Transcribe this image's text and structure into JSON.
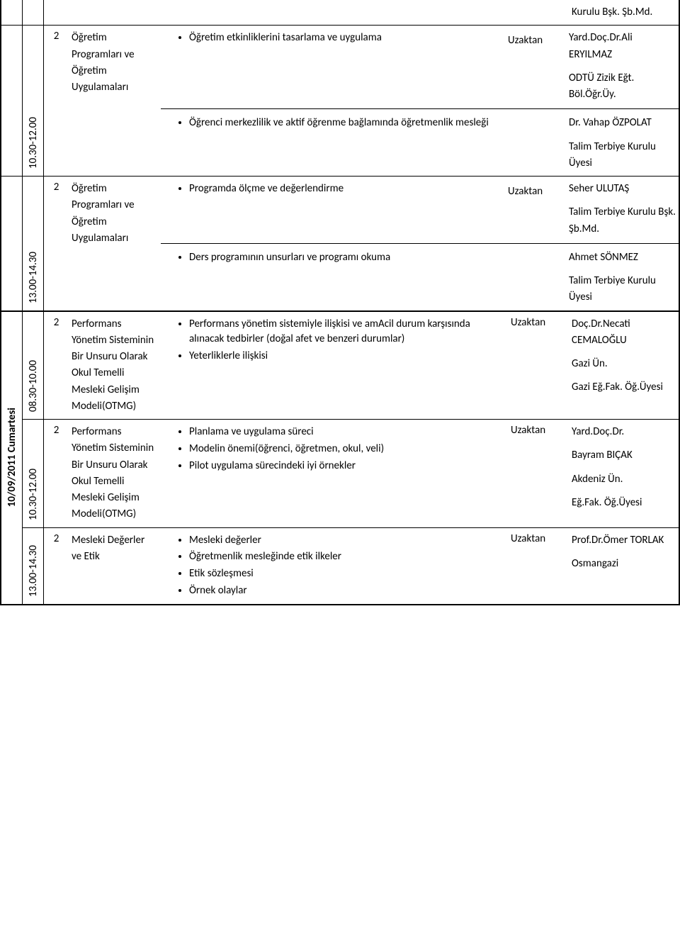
{
  "rows": [
    {
      "date": "",
      "time": "",
      "num": "",
      "topic": "",
      "mode": "",
      "contents": [
        [
          ""
        ]
      ],
      "persons": [
        "Kurulu Bşk. Şb.Md."
      ],
      "noTopBorder": true,
      "personOnlyFirst": true
    },
    {
      "date": "",
      "time": "10.30-12.00",
      "num": "2",
      "topic": "Öğretim Programları ve Öğretim Uygulamaları",
      "mode": "Uzaktan",
      "contents": [
        [
          "Öğretim etkinliklerini tasarlama ve uygulama"
        ],
        [
          "Öğrenci merkezlilik ve aktif öğrenme bağlamında öğretmenlik mesleği"
        ]
      ],
      "persons": [
        "Yard.Doç.Dr.Ali ERYILMAZ||ODTÜ Zizik Eğt. Böl.Öğr.Üy.",
        "Dr. Vahap ÖZPOLAT||Talim Terbiye Kurulu Üyesi"
      ]
    },
    {
      "date": "",
      "time": "13.00-14.30",
      "num": "2",
      "topic": "Öğretim Programları ve Öğretim Uygulamaları",
      "mode": "Uzaktan",
      "contents": [
        [
          "Programda ölçme ve değerlendirme"
        ],
        [
          "Ders programının unsurları ve programı okuma"
        ]
      ],
      "persons": [
        "Seher ULUTAŞ||Talim Terbiye Kurulu Bşk. Şb.Md.",
        "Ahmet SÖNMEZ||Talim Terbiye Kurulu Üyesi"
      ]
    },
    {
      "date": "10/09/2011 Cumartesi",
      "time": "08.30-10.00",
      "num": "2",
      "topic": "Performans Yönetim Sisteminin Bir Unsuru Olarak Okul Temelli Mesleki Gelişim Modeli(OTMG)",
      "mode": "Uzaktan",
      "thickTop": true,
      "dateSpan": 3,
      "contents": [
        [
          "Performans yönetim sistemiyle ilişkisi ve amAcil durum karşısında alınacak tedbirler (doğal afet ve benzeri durumlar)",
          "Yeterliklerle ilişkisi"
        ]
      ],
      "persons": [
        "Doç.Dr.Necati CEMALOĞLU||Gazi Ün.||Gazi Eğ.Fak. Öğ.Üyesi"
      ]
    },
    {
      "date": "",
      "time": "10.30-12.00",
      "num": "2",
      "topic": "Performans Yönetim Sisteminin Bir Unsuru Olarak Okul Temelli Mesleki Gelişim Modeli(OTMG)",
      "mode": "Uzaktan",
      "noDateCell": true,
      "contents": [
        [
          "Planlama ve uygulama süreci",
          "Modelin önemi(öğrenci, öğretmen, okul, veli)",
          "Pilot uygulama sürecindeki iyi örnekler"
        ]
      ],
      "persons": [
        "Yard.Doç.Dr.||Bayram BIÇAK||Akdeniz Ün.||Eğ.Fak. Öğ.Üyesi"
      ]
    },
    {
      "date": "",
      "time": "13.00-14.30",
      "num": "2",
      "topic": "Mesleki Değerler ve Etik",
      "mode": "Uzaktan",
      "noDateCell": true,
      "contents": [
        [
          "Mesleki değerler",
          "Öğretmenlik mesleğinde etik ilkeler",
          "Etik sözleşmesi",
          "Örnek olaylar"
        ]
      ],
      "persons": [
        "Prof.Dr.Ömer TORLAK||Osmangazi"
      ]
    }
  ]
}
